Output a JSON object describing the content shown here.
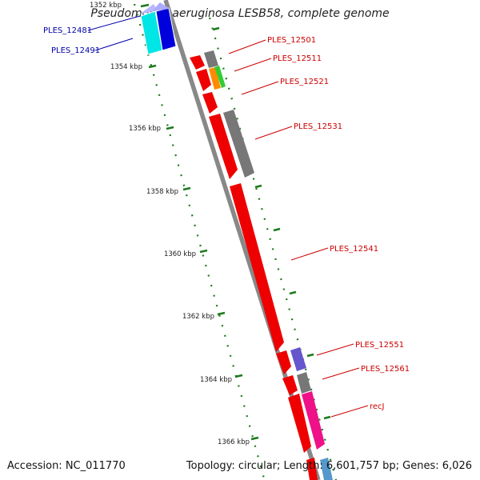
{
  "title": "Pseudomonas aeruginosa LESB58, complete genome",
  "footer": {
    "accession": "Accession: NC_011770",
    "summary": "Topology: circular; Length: 6,601,757 bp; Genes: 6,026"
  },
  "colors": {
    "backbone": "#888888",
    "tick": "#1a7a1a",
    "label_red": "#cc0000",
    "label_blue": "#0000aa"
  },
  "scale": {
    "unit": "kbp",
    "ticks": [
      {
        "label": "1352 kbp",
        "value": 1352
      },
      {
        "label": "1354 kbp",
        "value": 1354
      },
      {
        "label": "1356 kbp",
        "value": 1356
      },
      {
        "label": "1358 kbp",
        "value": 1358
      },
      {
        "label": "1360 kbp",
        "value": 1360
      },
      {
        "label": "1362 kbp",
        "value": 1362
      },
      {
        "label": "1364 kbp",
        "value": 1364
      },
      {
        "label": "1366 kbp",
        "value": 1366
      }
    ]
  },
  "genes": [
    {
      "name": "PLES_12481",
      "color": "#00e5e5",
      "strand": "reverse",
      "start": 1352.2,
      "end": 1353.5
    },
    {
      "name": "PLES_12491",
      "color": "#0000dd",
      "strand": "reverse",
      "start": 1352.2,
      "end": 1353.4
    },
    {
      "name": "PLES_12501",
      "color": "#777777",
      "strand": "forward",
      "start": 1353.45,
      "end": 1353.85
    },
    {
      "name": "PLES_12511",
      "color": "#ff8c00",
      "strand": "forward",
      "start": 1353.9,
      "end": 1354.4
    },
    {
      "name": "",
      "color": "#33cc33",
      "strand": "forward",
      "start": 1353.9,
      "end": 1354.5
    },
    {
      "name": "PLES_12521",
      "color": "#ee0000",
      "strand": "forward",
      "start": 1354.6,
      "end": 1355.1
    },
    {
      "name": "PLES_12531",
      "color": "#777777",
      "strand": "forward",
      "start": 1355.5,
      "end": 1357.6
    },
    {
      "name": "PLES_12541",
      "color": "#ee0000",
      "strand": "forward",
      "start": 1357.8,
      "end": 1363.0
    },
    {
      "name": "PLES_12551",
      "color": "#6655cc",
      "strand": "forward",
      "start": 1363.0,
      "end": 1363.6
    },
    {
      "name": "PLES_12561",
      "color": "#777777",
      "strand": "forward",
      "start": 1363.8,
      "end": 1364.3
    },
    {
      "name": "recJ",
      "color": "#ee1188",
      "strand": "forward",
      "start": 1364.4,
      "end": 1366.2
    }
  ]
}
